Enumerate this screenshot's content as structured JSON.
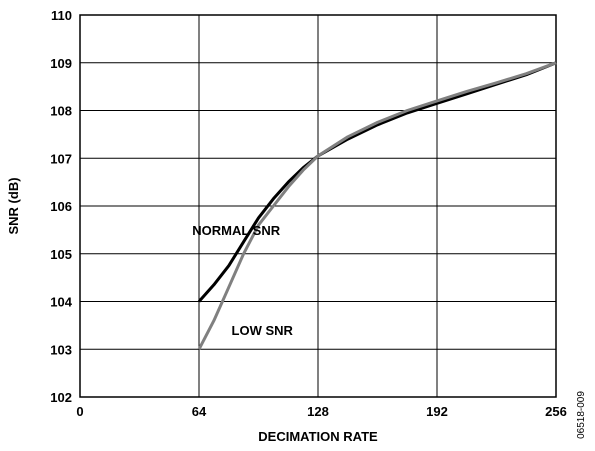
{
  "chart_data": {
    "type": "line",
    "xlabel": "DECIMATION RATE",
    "ylabel": "SNR (dB)",
    "xlim": [
      0,
      256
    ],
    "ylim": [
      102,
      110
    ],
    "xticks": [
      0,
      64,
      128,
      192,
      256
    ],
    "xtick_labels": [
      "0",
      "64",
      "128",
      "192",
      "256"
    ],
    "yticks": [
      102,
      103,
      104,
      105,
      106,
      107,
      108,
      109,
      110
    ],
    "ytick_labels": [
      "102",
      "103",
      "104",
      "105",
      "106",
      "107",
      "108",
      "109",
      "110"
    ],
    "grid": true,
    "series": [
      {
        "name": "NORMAL SNR",
        "color": "#000000",
        "x": [
          64,
          72,
          80,
          88,
          96,
          104,
          112,
          120,
          128,
          144,
          160,
          176,
          192,
          208,
          224,
          240,
          256
        ],
        "y": [
          104.0,
          104.35,
          104.75,
          105.25,
          105.75,
          106.15,
          106.5,
          106.8,
          107.05,
          107.4,
          107.7,
          107.95,
          108.15,
          108.35,
          108.55,
          108.75,
          109.0
        ]
      },
      {
        "name": "LOW SNR",
        "color": "#808080",
        "x": [
          64,
          72,
          80,
          88,
          96,
          104,
          112,
          120,
          128,
          144,
          160,
          176,
          192,
          208,
          224,
          240,
          256
        ],
        "y": [
          103.0,
          103.6,
          104.3,
          105.0,
          105.6,
          106.0,
          106.4,
          106.75,
          107.05,
          107.45,
          107.75,
          108.0,
          108.2,
          108.4,
          108.58,
          108.77,
          109.0
        ]
      }
    ],
    "annotations": [
      {
        "text": "NORMAL SNR",
        "x": 84,
        "y": 105.5
      },
      {
        "text": "LOW SNR",
        "x": 98,
        "y": 103.4
      }
    ]
  },
  "figure_id": "06518-009"
}
